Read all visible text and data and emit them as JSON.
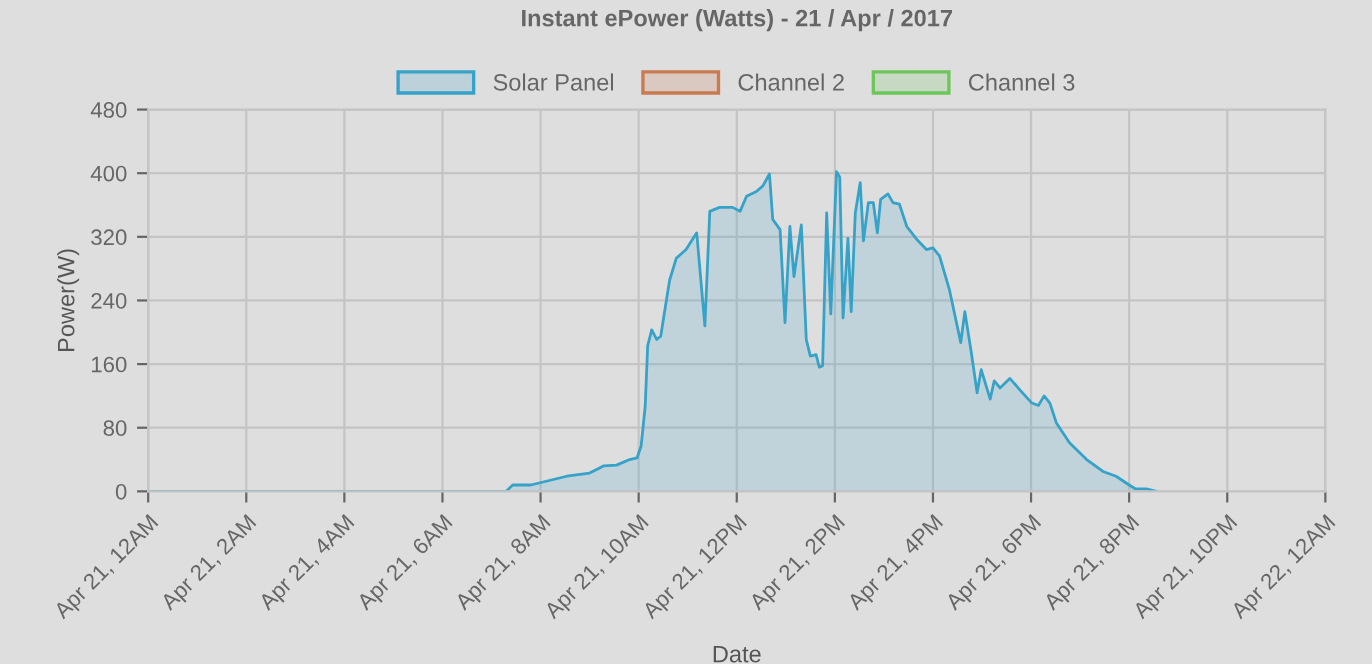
{
  "chart_data": {
    "type": "area",
    "title": "Instant ePower (Watts) - 21 / Apr / 2017",
    "xlabel": "Date",
    "ylabel": "Power(W)",
    "xlim": [
      "2017-04-21T00:00",
      "2017-04-22T00:00"
    ],
    "xticks": [
      {
        "value": "2017-04-21T00:00",
        "label": "Apr 21, 12AM"
      },
      {
        "value": "2017-04-21T02:00",
        "label": "Apr 21, 2AM"
      },
      {
        "value": "2017-04-21T04:00",
        "label": "Apr 21, 4AM"
      },
      {
        "value": "2017-04-21T06:00",
        "label": "Apr 21, 6AM"
      },
      {
        "value": "2017-04-21T08:00",
        "label": "Apr 21, 8AM"
      },
      {
        "value": "2017-04-21T10:00",
        "label": "Apr 21, 10AM"
      },
      {
        "value": "2017-04-21T12:00",
        "label": "Apr 21, 12PM"
      },
      {
        "value": "2017-04-21T14:00",
        "label": "Apr 21, 2PM"
      },
      {
        "value": "2017-04-21T16:00",
        "label": "Apr 21, 4PM"
      },
      {
        "value": "2017-04-21T18:00",
        "label": "Apr 21, 6PM"
      },
      {
        "value": "2017-04-21T20:00",
        "label": "Apr 21, 8PM"
      },
      {
        "value": "2017-04-21T22:00",
        "label": "Apr 21, 10PM"
      },
      {
        "value": "2017-04-22T00:00",
        "label": "Apr 22, 12AM"
      }
    ],
    "ylim": [
      0,
      480
    ],
    "yticks": [
      0,
      80,
      160,
      240,
      320,
      400,
      480
    ],
    "grid": true,
    "legend": "top",
    "marker": "none",
    "line_style": "solid",
    "series": [
      {
        "name": "Solar Panel",
        "color": "#36a2c8",
        "x": [
          "2017-04-21T00:00",
          "2017-04-21T07:18",
          "2017-04-21T07:26",
          "2017-04-21T07:48",
          "2017-04-21T08:32",
          "2017-04-21T09:00",
          "2017-04-21T09:17",
          "2017-04-21T09:33",
          "2017-04-21T09:49",
          "2017-04-21T09:58",
          "2017-04-21T10:03",
          "2017-04-21T10:08",
          "2017-04-21T10:11",
          "2017-04-21T10:16",
          "2017-04-21T10:22",
          "2017-04-21T10:27",
          "2017-04-21T10:34",
          "2017-04-21T10:38",
          "2017-04-21T10:46",
          "2017-04-21T10:58",
          "2017-04-21T11:11",
          "2017-04-21T11:21",
          "2017-04-21T11:27",
          "2017-04-21T11:39",
          "2017-04-21T11:55",
          "2017-04-21T12:04",
          "2017-04-21T12:12",
          "2017-04-21T12:24",
          "2017-04-21T12:32",
          "2017-04-21T12:40",
          "2017-04-21T12:44",
          "2017-04-21T12:53",
          "2017-04-21T12:59",
          "2017-04-21T13:05",
          "2017-04-21T13:10",
          "2017-04-21T13:19",
          "2017-04-21T13:25",
          "2017-04-21T13:30",
          "2017-04-21T13:37",
          "2017-04-21T13:41",
          "2017-04-21T13:45",
          "2017-04-21T13:50",
          "2017-04-21T13:55",
          "2017-04-21T14:02",
          "2017-04-21T14:06",
          "2017-04-21T14:10",
          "2017-04-21T14:16",
          "2017-04-21T14:20",
          "2017-04-21T14:25",
          "2017-04-21T14:31",
          "2017-04-21T14:35",
          "2017-04-21T14:41",
          "2017-04-21T14:47",
          "2017-04-21T14:52",
          "2017-04-21T14:56",
          "2017-04-21T15:05",
          "2017-04-21T15:11",
          "2017-04-21T15:19",
          "2017-04-21T15:28",
          "2017-04-21T15:40",
          "2017-04-21T15:52",
          "2017-04-21T16:00",
          "2017-04-21T16:08",
          "2017-04-21T16:20",
          "2017-04-21T16:34",
          "2017-04-21T16:39",
          "2017-04-21T16:47",
          "2017-04-21T16:54",
          "2017-04-21T16:59",
          "2017-04-21T17:10",
          "2017-04-21T17:15",
          "2017-04-21T17:22",
          "2017-04-21T17:34",
          "2017-04-21T17:46",
          "2017-04-21T18:01",
          "2017-04-21T18:09",
          "2017-04-21T18:16",
          "2017-04-21T18:23",
          "2017-04-21T18:31",
          "2017-04-21T18:47",
          "2017-04-21T19:08",
          "2017-04-21T19:28",
          "2017-04-21T19:44",
          "2017-04-21T20:00",
          "2017-04-21T20:08",
          "2017-04-21T20:21",
          "2017-04-21T20:33"
        ],
        "values": [
          0,
          0,
          8,
          8,
          19,
          23,
          32,
          33,
          40,
          42,
          57,
          107,
          183,
          203,
          191,
          195,
          241,
          266,
          293,
          304,
          325,
          208,
          352,
          357,
          357,
          352,
          371,
          377,
          384,
          399,
          342,
          329,
          212,
          333,
          270,
          335,
          191,
          170,
          172,
          156,
          158,
          350,
          223,
          402,
          395,
          218,
          318,
          226,
          350,
          388,
          315,
          363,
          363,
          325,
          367,
          374,
          363,
          361,
          333,
          317,
          304,
          306,
          296,
          254,
          187,
          226,
          174,
          124,
          153,
          116,
          139,
          130,
          142,
          128,
          111,
          108,
          120,
          111,
          86,
          61,
          40,
          25,
          19,
          8,
          3,
          3,
          0
        ]
      },
      {
        "name": "Channel 2",
        "color": "#c97a50"
      },
      {
        "name": "Channel 3",
        "color": "#6cc65a"
      }
    ]
  }
}
